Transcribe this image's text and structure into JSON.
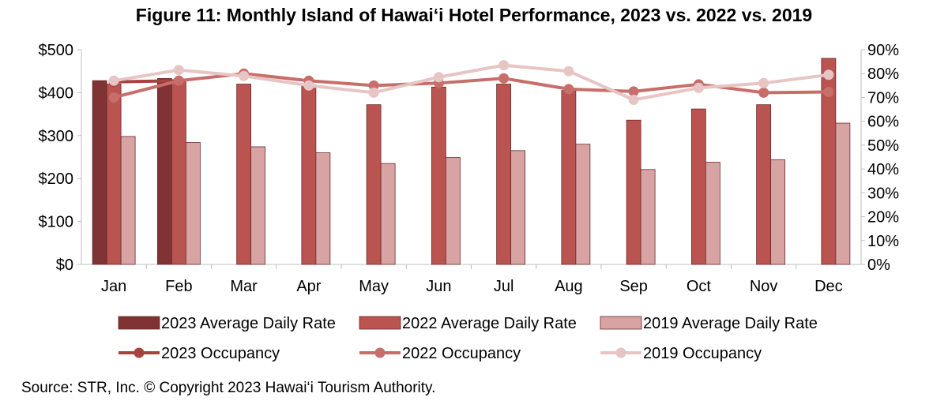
{
  "chart_data": {
    "type": "bar",
    "title": "Figure 11: Monthly Island of Hawai‘i Hotel Performance, 2023 vs. 2022 vs. 2019",
    "categories": [
      "Jan",
      "Feb",
      "Mar",
      "Apr",
      "May",
      "Jun",
      "Jul",
      "Aug",
      "Sep",
      "Oct",
      "Nov",
      "Dec"
    ],
    "y_left": {
      "ylim": [
        0,
        500
      ],
      "ticks": [
        "$0",
        "$100",
        "$200",
        "$300",
        "$400",
        "$500"
      ],
      "tick_values": [
        0,
        100,
        200,
        300,
        400,
        500
      ]
    },
    "y_right": {
      "ylim": [
        0,
        90
      ],
      "ticks": [
        "0%",
        "10%",
        "20%",
        "30%",
        "40%",
        "50%",
        "60%",
        "70%",
        "80%",
        "90%"
      ],
      "tick_values": [
        0,
        10,
        20,
        30,
        40,
        50,
        60,
        70,
        80,
        90
      ]
    },
    "bar_series": [
      {
        "name": "2023 Average Daily Rate",
        "color": "#7f3333",
        "values": [
          428,
          433,
          null,
          null,
          null,
          null,
          null,
          null,
          null,
          null,
          null,
          null
        ]
      },
      {
        "name": "2022 Average Daily Rate",
        "color": "#b95450",
        "values": [
          420,
          428,
          420,
          418,
          372,
          413,
          420,
          405,
          336,
          362,
          372,
          480
        ]
      },
      {
        "name": "2019 Average Daily Rate",
        "color": "#d7a4a3",
        "values": [
          298,
          284,
          274,
          260,
          235,
          249,
          265,
          280,
          221,
          238,
          244,
          329
        ]
      }
    ],
    "line_series": [
      {
        "name": "2023 Occupancy",
        "color": "#a8423f",
        "values": [
          76.5,
          77.0,
          null,
          null,
          null,
          null,
          null,
          null,
          null,
          null,
          null,
          null
        ]
      },
      {
        "name": "2022 Occupancy",
        "color": "#c86e6a",
        "values": [
          70,
          77,
          80,
          77,
          75,
          76,
          78,
          73.5,
          72.5,
          75.5,
          72,
          72.3
        ]
      },
      {
        "name": "2019 Occupancy",
        "color": "#e6c5c4",
        "values": [
          77,
          81.5,
          79,
          75,
          72,
          78.5,
          83.5,
          81,
          69,
          74,
          76,
          79.5
        ]
      }
    ],
    "grid": false,
    "legend_position": "bottom"
  },
  "source": "Source: STR, Inc.  © Copyright 2023 Hawai‘i Tourism Authority."
}
